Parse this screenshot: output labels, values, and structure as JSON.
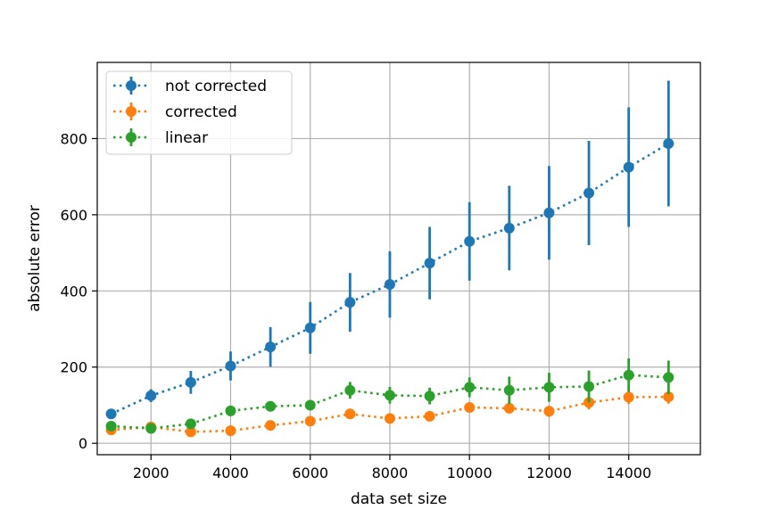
{
  "chart_data": {
    "type": "line",
    "title": "",
    "xlabel": "data set size",
    "ylabel": "absolute error",
    "xlim": [
      650,
      15800
    ],
    "ylim": [
      -30,
      1000
    ],
    "x_ticks": [
      2000,
      4000,
      6000,
      8000,
      10000,
      12000,
      14000
    ],
    "y_ticks": [
      0,
      200,
      400,
      600,
      800
    ],
    "grid": true,
    "legend_position": "top-left",
    "line_style": "dotted",
    "x": [
      1000,
      2000,
      3000,
      4000,
      5000,
      6000,
      7000,
      8000,
      9000,
      10000,
      11000,
      12000,
      13000,
      14000,
      15000
    ],
    "series": [
      {
        "name": "not corrected",
        "color": "#1f77b4",
        "values": [
          77,
          125,
          160,
          203,
          253,
          303,
          370,
          417,
          473,
          530,
          565,
          605,
          657,
          725,
          787
        ],
        "error": [
          10,
          17,
          30,
          38,
          52,
          68,
          77,
          87,
          95,
          103,
          111,
          123,
          137,
          157,
          165
        ]
      },
      {
        "name": "corrected",
        "color": "#ff7f0e",
        "values": [
          35,
          43,
          30,
          33,
          47,
          58,
          77,
          65,
          71,
          94,
          92,
          84,
          107,
          121,
          122
        ],
        "error": [
          5,
          6,
          5,
          6,
          6,
          8,
          10,
          10,
          10,
          12,
          14,
          14,
          18,
          18,
          18
        ]
      },
      {
        "name": "linear",
        "color": "#2ca02c",
        "values": [
          45,
          39,
          51,
          85,
          97,
          100,
          139,
          126,
          124,
          147,
          139,
          147,
          149,
          179,
          173
        ],
        "error": [
          6,
          6,
          6,
          10,
          10,
          12,
          22,
          22,
          22,
          26,
          36,
          38,
          42,
          44,
          44
        ]
      }
    ]
  }
}
